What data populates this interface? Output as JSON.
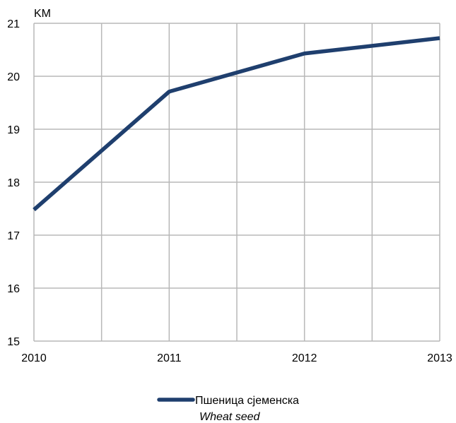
{
  "chart_data": {
    "type": "line",
    "unit_label": "KM",
    "x": [
      2010,
      2011,
      2012,
      2013
    ],
    "x_ticks": [
      "2010",
      "2011",
      "2012",
      "2013"
    ],
    "y_ticks": [
      "15",
      "16",
      "17",
      "18",
      "19",
      "20",
      "21"
    ],
    "ylim": [
      15,
      21
    ],
    "xlim": [
      2010,
      2013
    ],
    "grid": true,
    "legend_position": "bottom-center",
    "series": [
      {
        "name": "Пшеница сјеменска",
        "name_en": "Wheat seed",
        "color": "#1f3f6e",
        "values": [
          17.48,
          19.71,
          20.43,
          20.72
        ]
      }
    ]
  }
}
